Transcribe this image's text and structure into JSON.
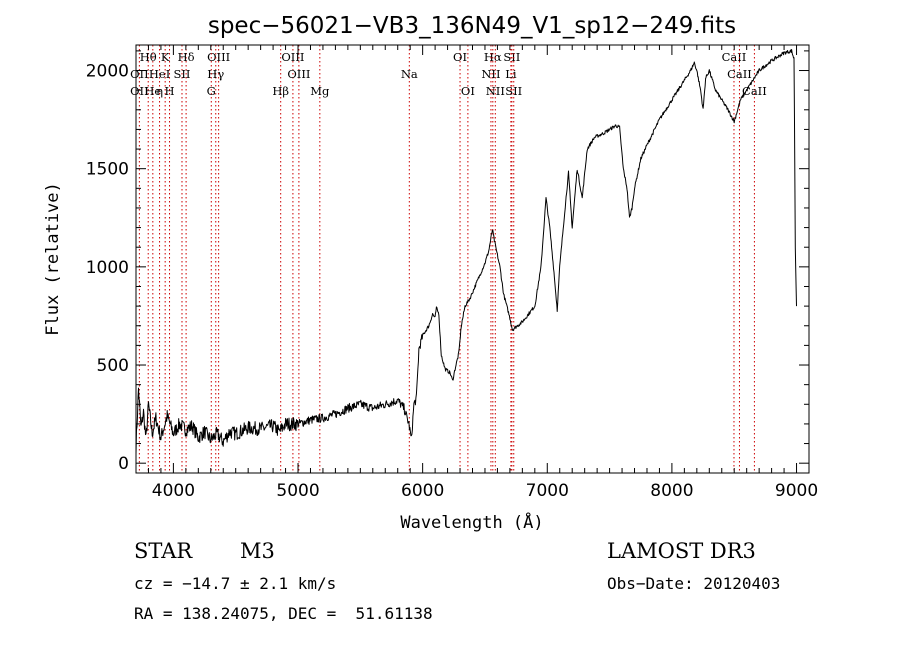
{
  "chart_data": {
    "type": "line",
    "title": "spec−56021−VB3_136N49_V1_sp12−249.fits",
    "xlabel": "Wavelength (Å)",
    "ylabel": "Flux (relative)",
    "xlim": [
      3700,
      9100
    ],
    "ylim": [
      -50,
      2130
    ],
    "xticks": [
      4000,
      5000,
      6000,
      7000,
      8000,
      9000
    ],
    "xtick_labels": [
      "4000",
      "5000",
      "6000",
      "7000",
      "8000",
      "9000"
    ],
    "yticks": [
      0,
      500,
      1000,
      1500,
      2000
    ],
    "ytick_labels": [
      "0",
      "500",
      "1000",
      "1500",
      "2000"
    ],
    "grid": false,
    "series": [
      {
        "name": "flux",
        "color": "#000000",
        "points": [
          [
            3700,
            80
          ],
          [
            3720,
            380
          ],
          [
            3740,
            180
          ],
          [
            3760,
            260
          ],
          [
            3780,
            120
          ],
          [
            3800,
            300
          ],
          [
            3830,
            150
          ],
          [
            3860,
            230
          ],
          [
            3900,
            130
          ],
          [
            3950,
            240
          ],
          [
            4000,
            150
          ],
          [
            4050,
            200
          ],
          [
            4100,
            170
          ],
          [
            4150,
            190
          ],
          [
            4200,
            130
          ],
          [
            4250,
            160
          ],
          [
            4300,
            120
          ],
          [
            4350,
            150
          ],
          [
            4400,
            110
          ],
          [
            4450,
            160
          ],
          [
            4500,
            150
          ],
          [
            4600,
            180
          ],
          [
            4700,
            175
          ],
          [
            4800,
            190
          ],
          [
            4850,
            160
          ],
          [
            4900,
            200
          ],
          [
            5000,
            200
          ],
          [
            5100,
            220
          ],
          [
            5200,
            230
          ],
          [
            5300,
            250
          ],
          [
            5400,
            280
          ],
          [
            5500,
            300
          ],
          [
            5600,
            280
          ],
          [
            5700,
            300
          ],
          [
            5800,
            320
          ],
          [
            5850,
            280
          ],
          [
            5890,
            200
          ],
          [
            5910,
            120
          ],
          [
            5930,
            300
          ],
          [
            5950,
            330
          ],
          [
            5970,
            580
          ],
          [
            6000,
            650
          ],
          [
            6050,
            700
          ],
          [
            6080,
            760
          ],
          [
            6100,
            740
          ],
          [
            6110,
            790
          ],
          [
            6130,
            760
          ],
          [
            6150,
            550
          ],
          [
            6180,
            480
          ],
          [
            6220,
            460
          ],
          [
            6240,
            420
          ],
          [
            6260,
            480
          ],
          [
            6290,
            560
          ],
          [
            6310,
            700
          ],
          [
            6340,
            800
          ],
          [
            6380,
            840
          ],
          [
            6420,
            900
          ],
          [
            6460,
            960
          ],
          [
            6500,
            1020
          ],
          [
            6530,
            1080
          ],
          [
            6560,
            1190
          ],
          [
            6580,
            1120
          ],
          [
            6600,
            1060
          ],
          [
            6620,
            1000
          ],
          [
            6650,
            860
          ],
          [
            6700,
            740
          ],
          [
            6720,
            680
          ],
          [
            6760,
            700
          ],
          [
            6800,
            720
          ],
          [
            6850,
            760
          ],
          [
            6900,
            800
          ],
          [
            6950,
            1000
          ],
          [
            6990,
            1350
          ],
          [
            7020,
            1200
          ],
          [
            7050,
            1000
          ],
          [
            7080,
            780
          ],
          [
            7100,
            1000
          ],
          [
            7140,
            1280
          ],
          [
            7170,
            1480
          ],
          [
            7200,
            1200
          ],
          [
            7240,
            1500
          ],
          [
            7280,
            1350
          ],
          [
            7320,
            1600
          ],
          [
            7380,
            1660
          ],
          [
            7450,
            1680
          ],
          [
            7500,
            1700
          ],
          [
            7550,
            1720
          ],
          [
            7580,
            1710
          ],
          [
            7610,
            1500
          ],
          [
            7640,
            1400
          ],
          [
            7660,
            1250
          ],
          [
            7680,
            1300
          ],
          [
            7700,
            1400
          ],
          [
            7750,
            1550
          ],
          [
            7800,
            1620
          ],
          [
            7900,
            1750
          ],
          [
            8000,
            1850
          ],
          [
            8100,
            1950
          ],
          [
            8150,
            2000
          ],
          [
            8180,
            2040
          ],
          [
            8200,
            2000
          ],
          [
            8230,
            1900
          ],
          [
            8250,
            1800
          ],
          [
            8270,
            1960
          ],
          [
            8300,
            2000
          ],
          [
            8350,
            1900
          ],
          [
            8400,
            1850
          ],
          [
            8450,
            1800
          ],
          [
            8500,
            1740
          ],
          [
            8550,
            1850
          ],
          [
            8600,
            1900
          ],
          [
            8650,
            1950
          ],
          [
            8700,
            2000
          ],
          [
            8800,
            2050
          ],
          [
            8900,
            2090
          ],
          [
            8960,
            2100
          ],
          [
            8980,
            2060
          ],
          [
            8990,
            1100
          ],
          [
            9000,
            800
          ]
        ]
      }
    ],
    "spectral_lines": [
      {
        "label": "Hθ",
        "wavelength": 3798,
        "row": 1
      },
      {
        "label": "OII",
        "wavelength": 3727,
        "row": 2
      },
      {
        "label": "OII",
        "wavelength": 3727,
        "row": 3
      },
      {
        "label": "He",
        "wavelength": 3835,
        "row": 3
      },
      {
        "label": "HeI",
        "wavelength": 3889,
        "row": 2
      },
      {
        "label": "η",
        "wavelength": 3889,
        "row": 3
      },
      {
        "label": "K",
        "wavelength": 3934,
        "row": 1
      },
      {
        "label": "SII",
        "wavelength": 4069,
        "row": 2
      },
      {
        "label": "H",
        "wavelength": 3969,
        "row": 3
      },
      {
        "label": "Hδ",
        "wavelength": 4102,
        "row": 1
      },
      {
        "label": "OIII",
        "wavelength": 4363,
        "row": 1
      },
      {
        "label": "Hγ",
        "wavelength": 4340,
        "row": 2
      },
      {
        "label": "G",
        "wavelength": 4304,
        "row": 3
      },
      {
        "label": "OIII",
        "wavelength": 4959,
        "row": 1
      },
      {
        "label": "OIII",
        "wavelength": 5007,
        "row": 2
      },
      {
        "label": "Hβ",
        "wavelength": 4861,
        "row": 3
      },
      {
        "label": "Mg",
        "wavelength": 5175,
        "row": 3
      },
      {
        "label": "Na",
        "wavelength": 5893,
        "row": 2
      },
      {
        "label": "OI",
        "wavelength": 6300,
        "row": 1
      },
      {
        "label": "OI",
        "wavelength": 6363,
        "row": 3
      },
      {
        "label": "Hα",
        "wavelength": 6563,
        "row": 1
      },
      {
        "label": "SII",
        "wavelength": 6716,
        "row": 1
      },
      {
        "label": "NII",
        "wavelength": 6548,
        "row": 2
      },
      {
        "label": "Li",
        "wavelength": 6708,
        "row": 2
      },
      {
        "label": "NII",
        "wavelength": 6583,
        "row": 3
      },
      {
        "label": "SII",
        "wavelength": 6731,
        "row": 3
      },
      {
        "label": "CaII",
        "wavelength": 8498,
        "row": 1
      },
      {
        "label": "CaII",
        "wavelength": 8542,
        "row": 2
      },
      {
        "label": "CaII",
        "wavelength": 8662,
        "row": 3
      }
    ],
    "line_color": "#cc0000"
  },
  "info": {
    "object_class": "STAR",
    "subclass": "M3",
    "survey": "LAMOST DR3",
    "cz": "cz = −14.7 ± 2.1 km/s",
    "obs_date": "Obs−Date: 20120403",
    "coords": "RA = 138.24075, DEC =  51.61138"
  }
}
